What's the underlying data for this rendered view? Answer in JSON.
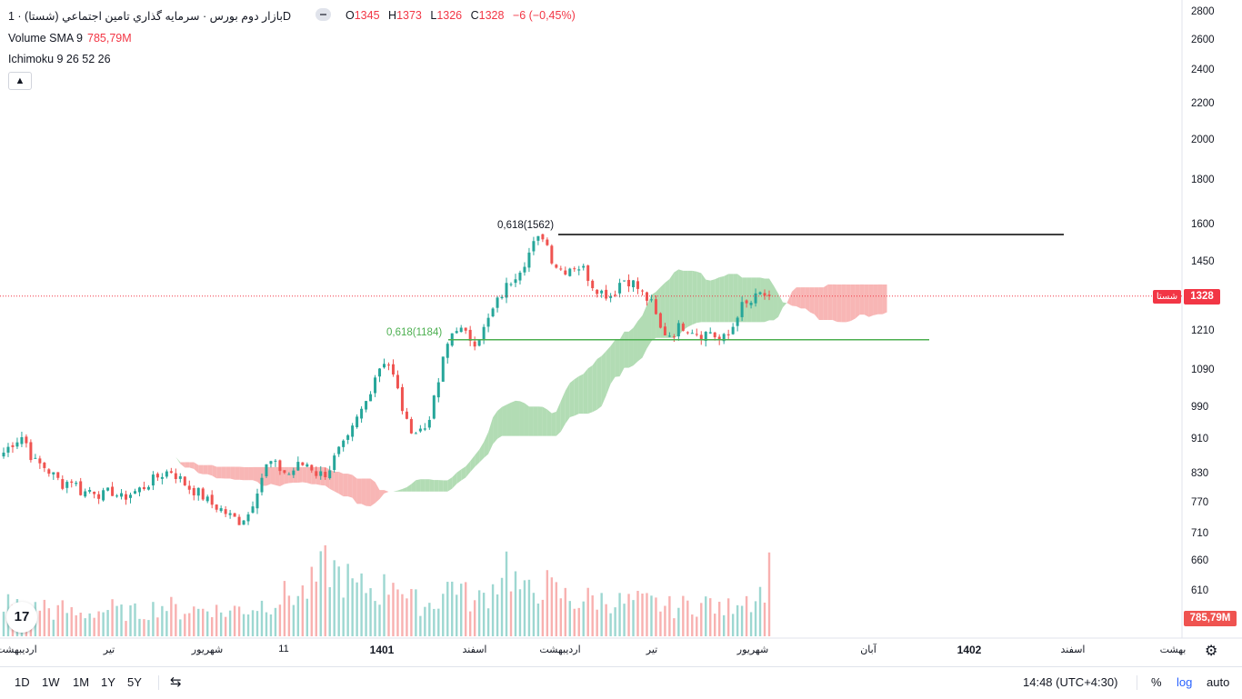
{
  "header": {
    "title": "بازار دوم بورس · سرمایه گذاري تامين اجتماعي (شستا) · 1D",
    "ohlc": [
      {
        "key": "O",
        "value": "1345"
      },
      {
        "key": "H",
        "value": "1373"
      },
      {
        "key": "L",
        "value": "1326"
      },
      {
        "key": "C",
        "value": "1328"
      },
      {
        "key": "",
        "value": "−6 (−0,45%)"
      }
    ],
    "volume_label": "Volume SMA 9",
    "volume_value": "785,79M",
    "ichimoku_label": "Ichimoku 9 26 52 26",
    "collapse_icon": "chevron-up-icon"
  },
  "price_axis": {
    "ticks": [
      "2800",
      "2600",
      "2400",
      "2200",
      "2000",
      "1800",
      "1600",
      "1450",
      "1330",
      "1210",
      "1090",
      "990",
      "910",
      "830",
      "770",
      "710",
      "660",
      "610"
    ],
    "last_price_label": "1328",
    "symbol_tag": "شستا",
    "volume_badge": "785,79M"
  },
  "time_axis": {
    "labels": [
      {
        "text": "ارديبهشت",
        "bold": false
      },
      {
        "text": "تير",
        "bold": false
      },
      {
        "text": "شهريور",
        "bold": false
      },
      {
        "text": "11",
        "bold": false
      },
      {
        "text": "1401",
        "bold": true
      },
      {
        "text": "اسفند",
        "bold": false
      },
      {
        "text": "ارديبهشت",
        "bold": false
      },
      {
        "text": "تير",
        "bold": false
      },
      {
        "text": "شهريور",
        "bold": false
      },
      {
        "text": "آبان",
        "bold": false
      },
      {
        "text": "1402",
        "bold": true
      },
      {
        "text": "اسفند",
        "bold": false
      },
      {
        "text": "بهشت",
        "bold": false
      }
    ]
  },
  "chart_data": {
    "type": "candlestick",
    "scale": "log",
    "colors": {
      "up": "#26a69a",
      "down": "#ef5350",
      "cloud_up": "#a5d6a7",
      "cloud_down": "#f7a9a8",
      "fib_upper": "#000000",
      "fib_lower": "#4caf50",
      "last_price": "#f23645"
    },
    "price_series": [
      880,
      905,
      920,
      860,
      850,
      830,
      810,
      820,
      790,
      800,
      785,
      795,
      780,
      790,
      800,
      815,
      830,
      840,
      820,
      800,
      790,
      770,
      760,
      745,
      735,
      750,
      810,
      860,
      845,
      830,
      850,
      855,
      830,
      835,
      880,
      905,
      960,
      1010,
      1090,
      1130,
      1050,
      950,
      930,
      940,
      1020,
      1150,
      1230,
      1200,
      1180,
      1220,
      1290,
      1350,
      1400,
      1450,
      1520,
      1562,
      1450,
      1420,
      1440,
      1430,
      1370,
      1340,
      1330,
      1390,
      1380,
      1340,
      1300,
      1210,
      1200,
      1230,
      1220,
      1200,
      1210,
      1180,
      1200,
      1290,
      1300,
      1335,
      1328
    ],
    "volume_series": [
      420,
      380,
      350,
      310,
      400,
      290,
      330,
      280,
      260,
      300,
      310,
      340,
      290,
      300,
      280,
      330,
      380,
      360,
      300,
      340,
      320,
      380,
      290,
      300,
      350,
      330,
      390,
      410,
      460,
      520,
      500,
      560,
      700,
      880,
      760,
      690,
      560,
      600,
      540,
      600,
      800,
      460,
      420,
      380,
      420,
      560,
      700,
      500,
      400,
      500,
      600,
      960,
      700,
      500,
      560,
      650,
      540,
      500,
      420,
      450,
      460,
      440,
      450,
      400,
      420,
      410,
      400,
      380,
      350,
      360,
      400,
      380,
      420,
      300,
      360,
      520,
      470,
      500,
      786
    ],
    "fib_levels": [
      {
        "label": "0,618(1562)",
        "price": 1562
      },
      {
        "label": "0,618(1184)",
        "price": 1184
      }
    ],
    "last_price": 1328
  },
  "toolbar": {
    "timeframes": [
      "1D",
      "1W",
      "1M",
      "1Y",
      "5Y"
    ],
    "compare_icon": "calendar-range-icon",
    "clock": "14:48 (UTC+4:30)",
    "percent": "%",
    "log": "log",
    "auto": "auto",
    "settings_icon": "gear-icon",
    "logo_text": "17"
  }
}
